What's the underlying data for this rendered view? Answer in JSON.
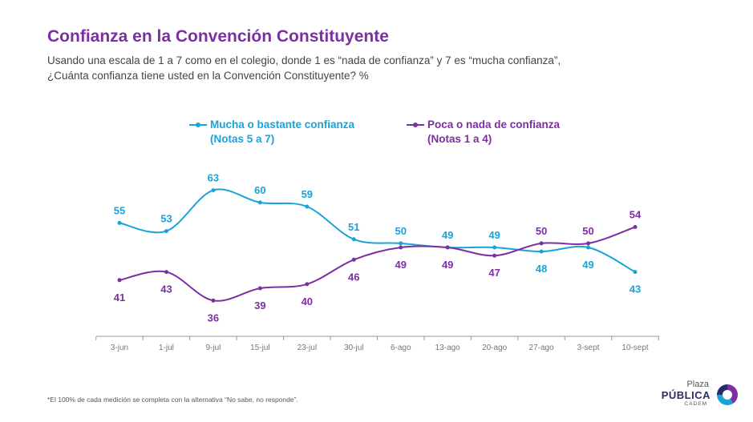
{
  "chart_data": {
    "type": "line",
    "title": "Confianza en la Convención Constituyente",
    "subtitle_lines": [
      "Usando una escala de 1 a 7 como en el colegio, donde 1 es “nada de confianza” y 7 es “mucha confianza”,",
      "¿Cuánta confianza tiene usted en la Convención Constituyente? %"
    ],
    "categories": [
      "3-jun",
      "1-jul",
      "9-jul",
      "15-jul",
      "23-jul",
      "30-jul",
      "6-ago",
      "13-ago",
      "20-ago",
      "27-ago",
      "3-sept",
      "10-sept"
    ],
    "series": [
      {
        "name_line1": "Mucha o bastante confianza",
        "name_line2": "(Notas 5 a 7)",
        "color": "#1aa3d9",
        "values": [
          55,
          53,
          63,
          60,
          59,
          51,
          50,
          49,
          49,
          48,
          49,
          43
        ]
      },
      {
        "name_line1": "Poca o nada de confianza",
        "name_line2": "(Notas 1 a 4)",
        "color": "#7b2fa3",
        "values": [
          41,
          43,
          36,
          39,
          40,
          46,
          49,
          49,
          47,
          50,
          50,
          54
        ]
      }
    ],
    "legend_position": "top",
    "grid": false
  },
  "footnote": "*El 100% de cada medición se completa con la alternativa “No sabe, no responde”.",
  "logo": {
    "line1": "Plaza",
    "line2": "PÚBLICA",
    "line3": "CADEM"
  }
}
